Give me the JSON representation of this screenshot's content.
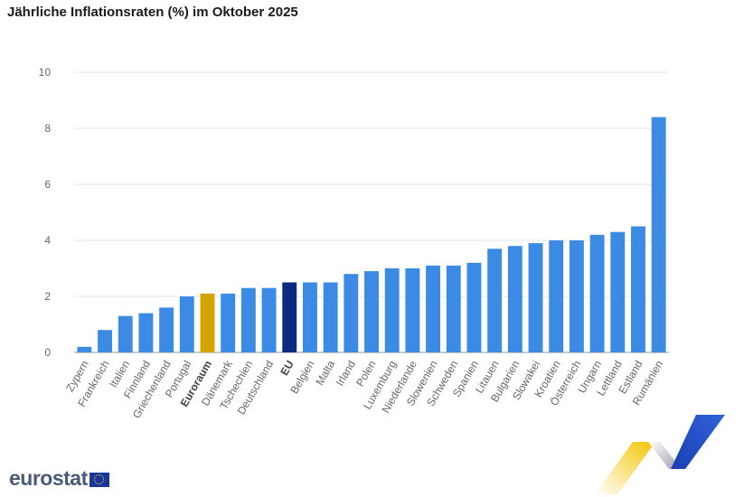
{
  "title": "Jährliche Inflationsraten (%) im Oktober 2025",
  "brand": {
    "logo_text": "eurostat",
    "flag_icon": "eu-flag-icon"
  },
  "colors": {
    "default_bar": "#3b8ae3",
    "euroraum_bar": "#d4a300",
    "eu_bar": "#0c2a80"
  },
  "chart_data": {
    "type": "bar",
    "title": "Jährliche Inflationsraten (%) im Oktober 2025",
    "xlabel": "",
    "ylabel": "",
    "ylim": [
      0,
      10
    ],
    "yticks": [
      0,
      2,
      4,
      6,
      8,
      10
    ],
    "grid": true,
    "legend": "none",
    "categories": [
      "Zypern",
      "Frankreich",
      "Italien",
      "Finnland",
      "Griechenland",
      "Portugal",
      "Euroraum",
      "Dänemark",
      "Tschechien",
      "Deutschland",
      "EU",
      "Belgien",
      "Malta",
      "Irland",
      "Polen",
      "Luxemburg",
      "Niederlande",
      "Slowenien",
      "Schweden",
      "Spanien",
      "Litauen",
      "Bulgarien",
      "Slowakei",
      "Kroatien",
      "Österreich",
      "Ungarn",
      "Lettland",
      "Estland",
      "Rumänien"
    ],
    "values": [
      0.2,
      0.8,
      1.3,
      1.4,
      1.6,
      2.0,
      2.1,
      2.1,
      2.3,
      2.3,
      2.5,
      2.5,
      2.5,
      2.8,
      2.9,
      3.0,
      3.0,
      3.1,
      3.1,
      3.2,
      3.7,
      3.8,
      3.9,
      4.0,
      4.0,
      4.2,
      4.3,
      4.5,
      8.4
    ],
    "highlight": {
      "Euroraum": "euroraum",
      "EU": "eu"
    },
    "bold_labels": [
      "Euroraum",
      "EU"
    ]
  }
}
